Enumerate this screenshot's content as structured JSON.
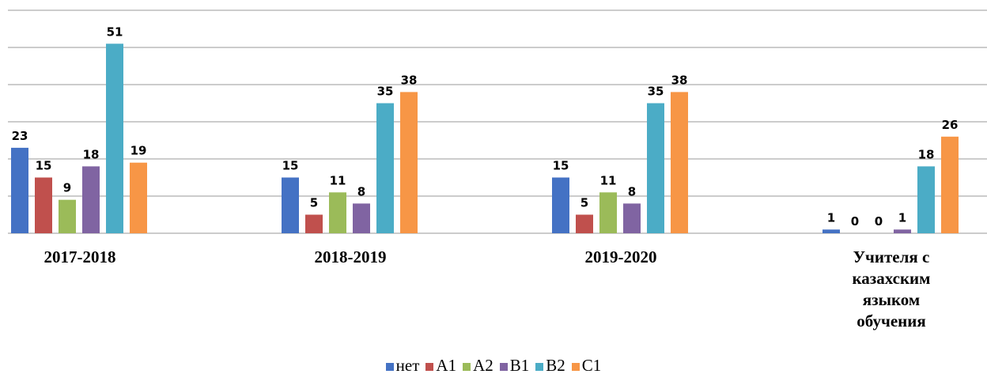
{
  "chart_data": {
    "type": "bar",
    "categories": [
      "2017-2018",
      "2018-2019",
      "2019-2020",
      "Учителя с казахским языком обучения"
    ],
    "series": [
      {
        "name": "нет",
        "color": "#4472c4",
        "values": [
          23,
          15,
          15,
          1
        ]
      },
      {
        "name": "A1",
        "color": "#c0504d",
        "values": [
          15,
          5,
          5,
          0
        ]
      },
      {
        "name": "A2",
        "color": "#9bbb59",
        "values": [
          9,
          11,
          11,
          0
        ]
      },
      {
        "name": "B1",
        "color": "#8064a2",
        "values": [
          18,
          8,
          8,
          1
        ]
      },
      {
        "name": "B2",
        "color": "#4bacc6",
        "values": [
          51,
          35,
          35,
          18
        ]
      },
      {
        "name": "C1",
        "color": "#f79646",
        "values": [
          19,
          38,
          38,
          26
        ]
      }
    ],
    "ylim": [
      0,
      60
    ],
    "yticks": [
      0,
      10,
      20,
      30,
      40,
      50,
      60
    ],
    "grid": true,
    "legend": "bottom"
  }
}
